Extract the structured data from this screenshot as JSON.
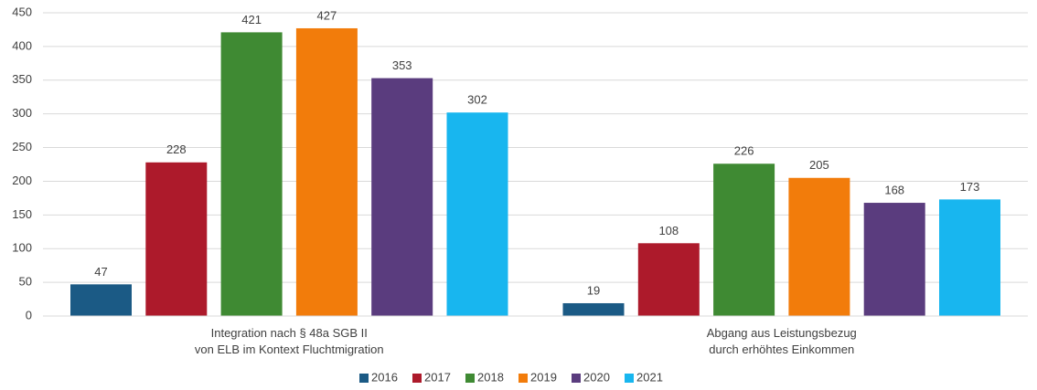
{
  "chart_data": {
    "type": "bar",
    "categories": [
      "Integration nach § 48a SGB II\nvon ELB im Kontext Fluchtmigration",
      "Abgang aus Leistungsbezug\ndurch erhöhtes Einkommen"
    ],
    "series": [
      {
        "name": "2016",
        "color": "#1b5a85",
        "values": [
          47,
          19
        ]
      },
      {
        "name": "2017",
        "color": "#ad1a2b",
        "values": [
          228,
          108
        ]
      },
      {
        "name": "2018",
        "color": "#3f8a33",
        "values": [
          421,
          226
        ]
      },
      {
        "name": "2019",
        "color": "#f27c0b",
        "values": [
          427,
          205
        ]
      },
      {
        "name": "2020",
        "color": "#5a3c7e",
        "values": [
          353,
          168
        ]
      },
      {
        "name": "2021",
        "color": "#18b6ef",
        "values": [
          302,
          173
        ]
      }
    ],
    "ylim": [
      0,
      450
    ],
    "yticks": [
      0,
      50,
      100,
      150,
      200,
      250,
      300,
      350,
      400,
      450
    ],
    "grid": true,
    "legend": "bottom"
  }
}
